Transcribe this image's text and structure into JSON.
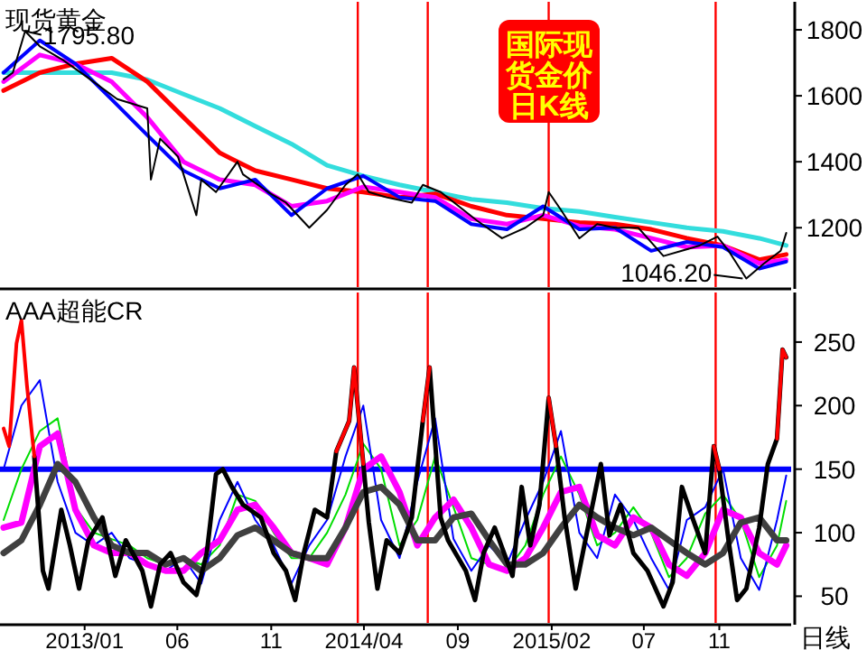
{
  "chart_data": [
    {
      "type": "line",
      "title": "现货黄金",
      "xlim": [
        "2012-08-22",
        "2016-02-26"
      ],
      "ylim": [
        1020,
        1885
      ],
      "yticks": [
        1200,
        1400,
        1600,
        1800
      ],
      "tick_labels": "y",
      "grid": false,
      "marker": "none",
      "line_style": "solid",
      "annotations": [
        "国际现货金价日K线",
        {
          "text": "1795.80",
          "x": "2012-09-26",
          "y": 1795.8
        },
        {
          "text": "1046.20",
          "x": "2015-12-15",
          "y": 1046.2
        }
      ],
      "ref_lines": [
        {
          "axis": "x",
          "value": "2014-03-22",
          "color": "#ff0000"
        },
        {
          "axis": "x",
          "value": "2014-07-14",
          "color": "#ff0000"
        },
        {
          "axis": "x",
          "value": "2015-01-27",
          "color": "#ff0000"
        },
        {
          "axis": "x",
          "value": "2015-10-26",
          "color": "#ff0000"
        }
      ],
      "x": [
        "2012-08-22",
        "2012-10-20",
        "2012-12-17",
        "2013-02-14",
        "2013-04-13",
        "2013-06-11",
        "2013-08-09",
        "2013-10-06",
        "2013-12-04",
        "2014-01-31",
        "2014-03-31",
        "2014-05-29",
        "2014-07-26",
        "2014-09-23",
        "2014-11-20",
        "2015-01-18",
        "2015-03-18",
        "2015-05-15",
        "2015-07-13",
        "2015-09-09",
        "2015-11-07",
        "2016-01-05",
        "2016-02-18"
      ],
      "series": [
        {
          "color": "#33dddd",
          "values": [
            1670,
            1670,
            1670,
            1670,
            1649,
            1605,
            1562,
            1508,
            1454,
            1389,
            1357,
            1330,
            1308,
            1286,
            1276,
            1259,
            1249,
            1232,
            1216,
            1200,
            1189,
            1168,
            1146
          ]
        },
        {
          "color": "#ff0000",
          "values": [
            1616,
            1670,
            1697,
            1714,
            1643,
            1535,
            1427,
            1373,
            1346,
            1319,
            1308,
            1292,
            1303,
            1265,
            1238,
            1227,
            1216,
            1211,
            1195,
            1168,
            1146,
            1103,
            1119
          ]
        },
        {
          "color": "#ff00ff",
          "values": [
            1643,
            1724,
            1697,
            1643,
            1535,
            1400,
            1346,
            1330,
            1265,
            1281,
            1324,
            1308,
            1292,
            1227,
            1211,
            1238,
            1205,
            1195,
            1168,
            1141,
            1146,
            1092,
            1103
          ]
        },
        {
          "color": "#0000ff",
          "values": [
            1670,
            1768,
            1697,
            1589,
            1481,
            1373,
            1319,
            1346,
            1238,
            1319,
            1357,
            1292,
            1281,
            1211,
            1195,
            1265,
            1195,
            1200,
            1130,
            1157,
            1141,
            1076,
            1097
          ]
        },
        {
          "color": "#000000",
          "x": [
            "2012-08-22",
            "2012-09-06",
            "2012-09-26",
            "2012-10-20",
            "2012-11-27",
            "2013-01-07",
            "2013-02-23",
            "2013-04-13",
            "2013-04-19",
            "2013-05-04",
            "2013-06-02",
            "2013-07-02",
            "2013-07-10",
            "2013-08-03",
            "2013-09-07",
            "2013-09-16",
            "2013-10-27",
            "2013-11-25",
            "2014-01-02",
            "2014-01-31",
            "2014-03-02",
            "2014-03-22",
            "2014-04-09",
            "2014-05-08",
            "2014-06-18",
            "2014-07-06",
            "2014-08-04",
            "2014-10-02",
            "2014-11-12",
            "2014-12-20",
            "2015-01-18",
            "2015-01-27",
            "2015-02-16",
            "2015-03-18",
            "2015-04-16",
            "2015-05-15",
            "2015-06-22",
            "2015-08-02",
            "2015-09-01",
            "2015-09-30",
            "2015-10-29",
            "2015-11-16",
            "2015-12-15",
            "2016-01-13",
            "2016-02-09",
            "2016-02-18"
          ],
          "values": [
            1650,
            1670,
            1796,
            1750,
            1708,
            1654,
            1590,
            1562,
            1346,
            1470,
            1416,
            1238,
            1346,
            1308,
            1400,
            1362,
            1308,
            1276,
            1200,
            1254,
            1330,
            1362,
            1308,
            1292,
            1276,
            1330,
            1308,
            1222,
            1168,
            1200,
            1238,
            1308,
            1254,
            1168,
            1211,
            1200,
            1200,
            1114,
            1130,
            1146,
            1173,
            1130,
            1046,
            1092,
            1130,
            1184
          ]
        }
      ]
    },
    {
      "type": "line",
      "title": "AAA超能CR",
      "xlabel": "日线",
      "xlim": [
        "2012-08-22",
        "2016-02-26"
      ],
      "ylim": [
        29,
        289
      ],
      "yticks": [
        50,
        100,
        150,
        200,
        250
      ],
      "grid": false,
      "marker": "none",
      "line_style": "solid",
      "xticks": [
        {
          "value": "2013-01-01",
          "label": "2013/01"
        },
        {
          "value": "2013-06-01",
          "label": "06"
        },
        {
          "value": "2013-11-01",
          "label": "11"
        },
        {
          "value": "2014-04-01",
          "label": "2014/04"
        },
        {
          "value": "2014-09-01",
          "label": "09"
        },
        {
          "value": "2015-02-01",
          "label": "2015/02"
        },
        {
          "value": "2015-07-01",
          "label": "07"
        },
        {
          "value": "2015-11-01",
          "label": "11"
        }
      ],
      "ref_lines": [
        {
          "axis": "y",
          "value": 150,
          "color": "#0000ff"
        },
        {
          "axis": "x",
          "value": "2014-03-22",
          "color": "#ff0000"
        },
        {
          "axis": "x",
          "value": "2014-07-14",
          "color": "#ff0000"
        },
        {
          "axis": "x",
          "value": "2015-01-27",
          "color": "#ff0000"
        },
        {
          "axis": "x",
          "value": "2015-10-26",
          "color": "#ff0000"
        }
      ],
      "x": [
        "2012-08-22",
        "2012-09-20",
        "2012-10-20",
        "2012-11-18",
        "2012-12-17",
        "2013-01-16",
        "2013-02-14",
        "2013-03-15",
        "2013-04-13",
        "2013-05-13",
        "2013-06-11",
        "2013-07-10",
        "2013-08-09",
        "2013-09-07",
        "2013-10-06",
        "2013-11-05",
        "2013-12-04",
        "2014-01-02",
        "2014-01-31",
        "2014-03-02",
        "2014-03-31",
        "2014-04-29",
        "2014-05-29",
        "2014-06-27",
        "2014-07-26",
        "2014-08-25",
        "2014-09-23",
        "2014-10-22",
        "2014-11-20",
        "2014-12-20",
        "2015-01-18",
        "2015-02-16",
        "2015-03-18",
        "2015-04-16",
        "2015-05-15",
        "2015-06-14",
        "2015-07-13",
        "2015-08-11",
        "2015-09-09",
        "2015-10-09",
        "2015-11-07",
        "2015-12-06",
        "2016-01-05",
        "2016-02-03",
        "2016-02-18"
      ],
      "series": [
        {
          "color": "#00dd00",
          "values": [
            110,
            150,
            180,
            190,
            120,
            100,
            95,
            90,
            80,
            75,
            80,
            75,
            90,
            130,
            125,
            100,
            80,
            80,
            100,
            130,
            170,
            150,
            90,
            110,
            160,
            120,
            80,
            75,
            70,
            90,
            130,
            160,
            130,
            90,
            100,
            120,
            100,
            65,
            80,
            115,
            130,
            110,
            65,
            90,
            125
          ]
        },
        {
          "color": "#0000ff",
          "values": [
            150,
            200,
            220,
            140,
            100,
            90,
            100,
            80,
            75,
            70,
            80,
            60,
            110,
            140,
            110,
            90,
            60,
            90,
            110,
            160,
            200,
            110,
            80,
            140,
            190,
            95,
            70,
            90,
            75,
            110,
            140,
            180,
            100,
            80,
            130,
            110,
            80,
            55,
            110,
            120,
            150,
            80,
            55,
            110,
            145
          ]
        },
        {
          "color": "#ff00ff",
          "values": [
            104,
            108,
            168,
            178,
            118,
            90,
            84,
            84,
            75,
            70,
            70,
            84,
            94,
            118,
            122,
            104,
            84,
            80,
            75,
            104,
            150,
            160,
            132,
            90,
            112,
            126,
            104,
            75,
            70,
            80,
            104,
            132,
            136,
            98,
            90,
            112,
            104,
            75,
            66,
            84,
            118,
            112,
            84,
            75,
            90
          ]
        },
        {
          "color": "#404040",
          "values": [
            84,
            94,
            122,
            154,
            140,
            112,
            90,
            84,
            84,
            75,
            80,
            70,
            80,
            98,
            104,
            94,
            84,
            80,
            80,
            104,
            132,
            136,
            122,
            94,
            94,
            112,
            115,
            94,
            75,
            75,
            84,
            104,
            122,
            112,
            104,
            98,
            104,
            94,
            84,
            75,
            84,
            108,
            112,
            94,
            94
          ]
        },
        {
          "color": "#000000",
          "x": [
            "2012-10-11",
            "2012-10-25",
            "2012-11-03",
            "2012-11-24",
            "2012-12-08",
            "2012-12-23",
            "2013-01-07",
            "2013-01-30",
            "2013-02-20",
            "2013-03-09",
            "2013-04-05",
            "2013-04-19",
            "2013-05-04",
            "2013-05-21",
            "2013-06-11",
            "2013-07-02",
            "2013-07-19",
            "2013-08-03",
            "2013-08-14",
            "2013-08-29",
            "2013-09-16",
            "2013-10-15",
            "2013-11-05",
            "2013-11-25",
            "2013-12-10",
            "2013-12-24",
            "2014-01-11",
            "2014-01-31",
            "2014-02-15",
            "2014-03-08",
            "2014-03-16",
            "2014-03-31",
            "2014-04-09",
            "2014-04-23",
            "2014-05-08",
            "2014-05-29",
            "2014-06-18",
            "2014-07-06",
            "2014-07-17",
            "2014-08-04",
            "2014-08-16",
            "2014-09-14",
            "2014-09-29",
            "2014-10-13",
            "2014-10-31",
            "2014-11-29",
            "2014-12-14",
            "2014-12-28",
            "2015-01-12",
            "2015-01-27",
            "2015-02-08",
            "2015-02-22",
            "2015-03-12",
            "2015-03-26",
            "2015-04-22",
            "2015-05-06",
            "2015-05-24",
            "2015-06-14",
            "2015-07-07",
            "2015-08-02",
            "2015-08-17",
            "2015-09-01",
            "2015-09-18",
            "2015-10-09",
            "2015-10-23",
            "2015-11-01",
            "2015-11-16",
            "2015-11-30",
            "2015-12-15",
            "2016-01-05",
            "2016-01-19",
            "2016-02-03",
            "2016-02-12",
            "2016-02-18"
          ],
          "values": [
            160,
            70,
            56,
            118,
            90,
            56,
            94,
            112,
            66,
            94,
            70,
            42,
            75,
            84,
            61,
            51,
            84,
            146,
            150,
            136,
            122,
            112,
            84,
            70,
            47,
            84,
            118,
            112,
            164,
            188,
            230,
            154,
            108,
            56,
            94,
            84,
            112,
            188,
            230,
            112,
            94,
            70,
            47,
            84,
            104,
            66,
            136,
            90,
            122,
            206,
            168,
            112,
            56,
            90,
            154,
            98,
            122,
            84,
            70,
            42,
            61,
            136,
            112,
            84,
            168,
            150,
            94,
            47,
            56,
            104,
            154,
            174,
            244,
            238
          ]
        },
        {
          "color": "#ff0000",
          "x": [
            "2012-08-22",
            "2012-08-31",
            "2012-09-12",
            "2012-09-20",
            "2012-09-29",
            "2012-10-11"
          ],
          "values": [
            182,
            168,
            249,
            267,
            216,
            160
          ]
        },
        {
          "color": "#ff0000",
          "x": [
            "2014-02-15",
            "2014-03-08",
            "2014-03-16",
            "2014-03-31"
          ],
          "values": [
            164,
            188,
            230,
            154
          ]
        },
        {
          "color": "#ff0000",
          "x": [
            "2014-07-06",
            "2014-07-17"
          ],
          "values": [
            188,
            230
          ]
        },
        {
          "color": "#ff0000",
          "x": [
            "2015-01-27",
            "2015-02-08"
          ],
          "values": [
            206,
            168
          ]
        },
        {
          "color": "#ff0000",
          "x": [
            "2015-10-23",
            "2015-11-01"
          ],
          "values": [
            168,
            150
          ]
        },
        {
          "color": "#ff0000",
          "x": [
            "2016-02-03",
            "2016-02-12",
            "2016-02-18"
          ],
          "values": [
            174,
            244,
            238
          ]
        }
      ]
    }
  ]
}
